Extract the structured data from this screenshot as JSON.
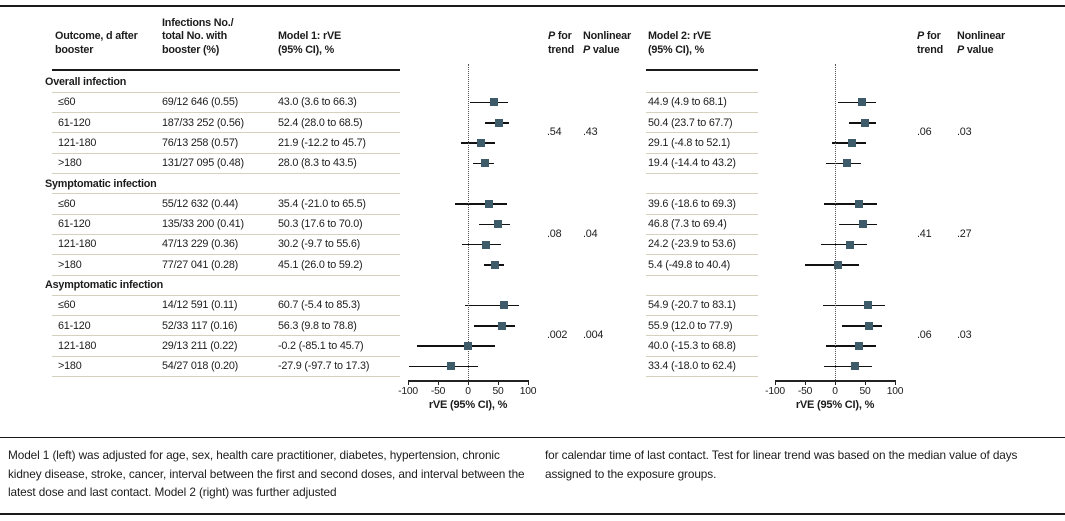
{
  "colors": {
    "marker": "#3d5b68",
    "ci_line": "#111111",
    "separator": "#d6d0bf",
    "dark_rule": "#1a1a1a",
    "text": "#1c1c1c"
  },
  "header": {
    "col_outcome": "Outcome, d after\nbooster",
    "col_infections": "Infections No./\ntotal No. with\nbooster (%)",
    "col_model1": "Model 1: rVE\n(95% CI), %",
    "col_p_trend": "P for\ntrend",
    "col_nonlinear": "Nonlinear\nP value",
    "col_model2": "Model 2: rVE\n(95% CI), %"
  },
  "axis": {
    "ticks": [
      -100,
      -50,
      0,
      50,
      100
    ],
    "tick_labels": [
      "-100",
      "-50",
      "0",
      "50",
      "100"
    ],
    "title": "rVE (95% CI), %",
    "range": [
      -100,
      100
    ],
    "reference_line_x": 0
  },
  "sections": [
    {
      "label": "Overall infection",
      "model1_p_trend": ".54",
      "model1_nonlinear": ".43",
      "model2_p_trend": ".06",
      "model2_nonlinear": ".03",
      "rows": [
        {
          "label": "≤60",
          "infections": "69/12 646 (0.55)",
          "m1_text": "43.0 (3.6 to 66.3)",
          "m1": [
            43.0,
            3.6,
            66.3
          ],
          "m2_text": "44.9 (4.9 to 68.1)",
          "m2": [
            44.9,
            4.9,
            68.1
          ]
        },
        {
          "label": "61-120",
          "infections": "187/33 252 (0.56)",
          "m1_text": "52.4 (28.0 to 68.5)",
          "m1": [
            52.4,
            28.0,
            68.5
          ],
          "m2_text": "50.4 (23.7 to 67.7)",
          "m2": [
            50.4,
            23.7,
            67.7
          ]
        },
        {
          "label": "121-180",
          "infections": "76/13 258 (0.57)",
          "m1_text": "21.9 (-12.2 to 45.7)",
          "m1": [
            21.9,
            -12.2,
            45.7
          ],
          "m2_text": "29.1 (-4.8 to 52.1)",
          "m2": [
            29.1,
            -4.8,
            52.1
          ]
        },
        {
          "label": ">180",
          "infections": "131/27 095 (0.48)",
          "m1_text": "28.0 (8.3 to 43.5)",
          "m1": [
            28.0,
            8.3,
            43.5
          ],
          "m2_text": "19.4 (-14.4 to 43.2)",
          "m2": [
            19.4,
            -14.4,
            43.2
          ]
        }
      ]
    },
    {
      "label": "Symptomatic infection",
      "model1_p_trend": ".08",
      "model1_nonlinear": ".04",
      "model2_p_trend": ".41",
      "model2_nonlinear": ".27",
      "rows": [
        {
          "label": "≤60",
          "infections": "55/12 632 (0.44)",
          "m1_text": "35.4 (-21.0 to 65.5)",
          "m1": [
            35.4,
            -21.0,
            65.5
          ],
          "m2_text": "39.6 (-18.6 to 69.3)",
          "m2": [
            39.6,
            -18.6,
            69.3
          ]
        },
        {
          "label": "61-120",
          "infections": "135/33 200 (0.41)",
          "m1_text": "50.3 (17.6 to 70.0)",
          "m1": [
            50.3,
            17.6,
            70.0
          ],
          "m2_text": "46.8 (7.3 to 69.4)",
          "m2": [
            46.8,
            7.3,
            69.4
          ]
        },
        {
          "label": "121-180",
          "infections": "47/13 229 (0.36)",
          "m1_text": "30.2 (-9.7 to 55.6)",
          "m1": [
            30.2,
            -9.7,
            55.6
          ],
          "m2_text": "24.2 (-23.9 to 53.6)",
          "m2": [
            24.2,
            -23.9,
            53.6
          ]
        },
        {
          "label": ">180",
          "infections": "77/27 041 (0.28)",
          "m1_text": "45.1 (26.0 to 59.2)",
          "m1": [
            45.1,
            26.0,
            59.2
          ],
          "m2_text": "5.4 (-49.8 to 40.4)",
          "m2": [
            5.4,
            -49.8,
            40.4
          ]
        }
      ]
    },
    {
      "label": "Asymptomatic infection",
      "model1_p_trend": ".002",
      "model1_nonlinear": ".004",
      "model2_p_trend": ".06",
      "model2_nonlinear": ".03",
      "rows": [
        {
          "label": "≤60",
          "infections": "14/12 591 (0.11)",
          "m1_text": "60.7 (-5.4 to 85.3)",
          "m1": [
            60.7,
            -5.4,
            85.3
          ],
          "m2_text": "54.9 (-20.7 to 83.1)",
          "m2": [
            54.9,
            -20.7,
            83.1
          ]
        },
        {
          "label": "61-120",
          "infections": "52/33 117 (0.16)",
          "m1_text": "56.3 (9.8 to 78.8)",
          "m1": [
            56.3,
            9.8,
            78.8
          ],
          "m2_text": "55.9 (12.0 to 77.9)",
          "m2": [
            55.9,
            12.0,
            77.9
          ]
        },
        {
          "label": "121-180",
          "infections": "29/13 211 (0.22)",
          "m1_text": "-0.2 (-85.1 to 45.7)",
          "m1": [
            -0.2,
            -85.1,
            45.7
          ],
          "m2_text": "40.0 (-15.3 to 68.8)",
          "m2": [
            40.0,
            -15.3,
            68.8
          ]
        },
        {
          "label": ">180",
          "infections": "54/27 018 (0.20)",
          "m1_text": "-27.9 (-97.7 to 17.3)",
          "m1": [
            -27.9,
            -97.7,
            17.3
          ],
          "m2_text": "33.4 (-18.0 to 62.4)",
          "m2": [
            33.4,
            -18.0,
            62.4
          ]
        }
      ]
    }
  ],
  "footnotes": {
    "left": "Model 1 (left) was adjusted for age, sex, health care practitioner, diabetes, hypertension, chronic kidney disease, stroke, cancer, interval between the first and second doses, and interval between the latest dose and last contact. Model 2 (right) was further adjusted",
    "right": "for calendar time of last contact. Test for linear trend was based on the median value of days assigned to the exposure groups."
  },
  "chart_data": [
    {
      "type": "scatter",
      "subtype": "forest",
      "title": "Model 1: rVE (95% CI), %",
      "xlabel": "rVE (95% CI), %",
      "xlim": [
        -100,
        100
      ],
      "xticks": [
        -100,
        -50,
        0,
        50,
        100
      ],
      "reference_line_x": 0,
      "categories": [
        "≤60",
        "61-120",
        "121-180",
        ">180"
      ],
      "series": [
        {
          "name": "Overall infection",
          "estimates": [
            43.0,
            52.4,
            21.9,
            28.0
          ],
          "ci_low": [
            3.6,
            28.0,
            -12.2,
            8.3
          ],
          "ci_high": [
            66.3,
            68.5,
            45.7,
            43.5
          ],
          "p_trend": ".54",
          "nonlinear_p": ".43"
        },
        {
          "name": "Symptomatic infection",
          "estimates": [
            35.4,
            50.3,
            30.2,
            45.1
          ],
          "ci_low": [
            -21.0,
            17.6,
            -9.7,
            26.0
          ],
          "ci_high": [
            65.5,
            70.0,
            55.6,
            59.2
          ],
          "p_trend": ".08",
          "nonlinear_p": ".04"
        },
        {
          "name": "Asymptomatic infection",
          "estimates": [
            60.7,
            56.3,
            -0.2,
            -27.9
          ],
          "ci_low": [
            -5.4,
            9.8,
            -85.1,
            -97.7
          ],
          "ci_high": [
            85.3,
            78.8,
            45.7,
            17.3
          ],
          "p_trend": ".002",
          "nonlinear_p": ".004"
        }
      ]
    },
    {
      "type": "scatter",
      "subtype": "forest",
      "title": "Model 2: rVE (95% CI), %",
      "xlabel": "rVE (95% CI), %",
      "xlim": [
        -100,
        100
      ],
      "xticks": [
        -100,
        -50,
        0,
        50,
        100
      ],
      "reference_line_x": 0,
      "categories": [
        "≤60",
        "61-120",
        "121-180",
        ">180"
      ],
      "series": [
        {
          "name": "Overall infection",
          "estimates": [
            44.9,
            50.4,
            29.1,
            19.4
          ],
          "ci_low": [
            4.9,
            23.7,
            -4.8,
            -14.4
          ],
          "ci_high": [
            68.1,
            67.7,
            52.1,
            43.2
          ],
          "p_trend": ".06",
          "nonlinear_p": ".03"
        },
        {
          "name": "Symptomatic infection",
          "estimates": [
            39.6,
            46.8,
            24.2,
            5.4
          ],
          "ci_low": [
            -18.6,
            7.3,
            -23.9,
            -49.8
          ],
          "ci_high": [
            69.3,
            69.4,
            53.6,
            40.4
          ],
          "p_trend": ".41",
          "nonlinear_p": ".27"
        },
        {
          "name": "Asymptomatic infection",
          "estimates": [
            54.9,
            55.9,
            40.0,
            33.4
          ],
          "ci_low": [
            -20.7,
            12.0,
            -15.3,
            -18.0
          ],
          "ci_high": [
            83.1,
            77.9,
            68.8,
            62.4
          ],
          "p_trend": ".06",
          "nonlinear_p": ".03"
        }
      ]
    }
  ]
}
